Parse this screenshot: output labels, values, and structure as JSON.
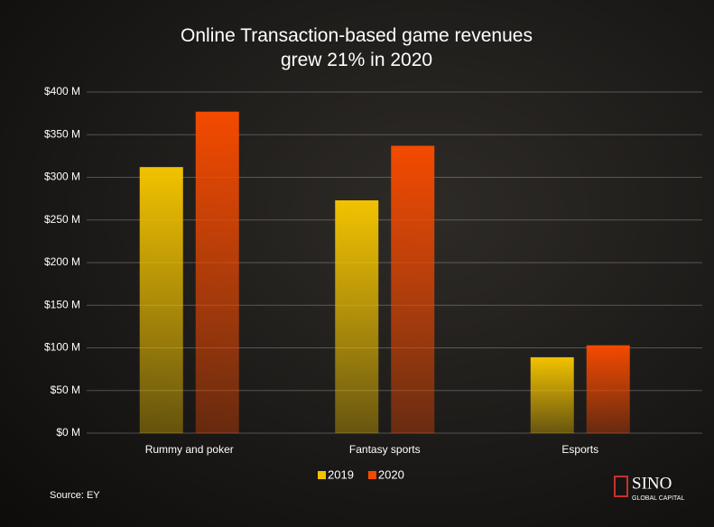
{
  "chart_data": {
    "type": "bar",
    "title": "Online Transaction-based game revenues grew 21% in 2020",
    "categories": [
      "Rummy and poker",
      "Fantasy sports",
      "Esports"
    ],
    "series": [
      {
        "name": "2019",
        "color": "#f2c200",
        "values": [
          312,
          273,
          89
        ]
      },
      {
        "name": "2020",
        "color": "#f44a00",
        "values": [
          377,
          337,
          103
        ]
      }
    ],
    "ylim": [
      0,
      400
    ],
    "yticks": [
      {
        "value": 0,
        "label": "$0 M"
      },
      {
        "value": 50,
        "label": "$50 M"
      },
      {
        "value": 100,
        "label": "$100 M"
      },
      {
        "value": 150,
        "label": "$150 M"
      },
      {
        "value": 200,
        "label": "$200 M"
      },
      {
        "value": 250,
        "label": "$250 M"
      },
      {
        "value": 300,
        "label": "$300 M"
      },
      {
        "value": 350,
        "label": "$350 M"
      },
      {
        "value": 400,
        "label": "$400 M"
      }
    ],
    "grid": true,
    "legend": "bottom",
    "source": "Source: EY",
    "logo": {
      "name": "SINO",
      "tagline": "GLOBAL CAPITAL"
    }
  }
}
